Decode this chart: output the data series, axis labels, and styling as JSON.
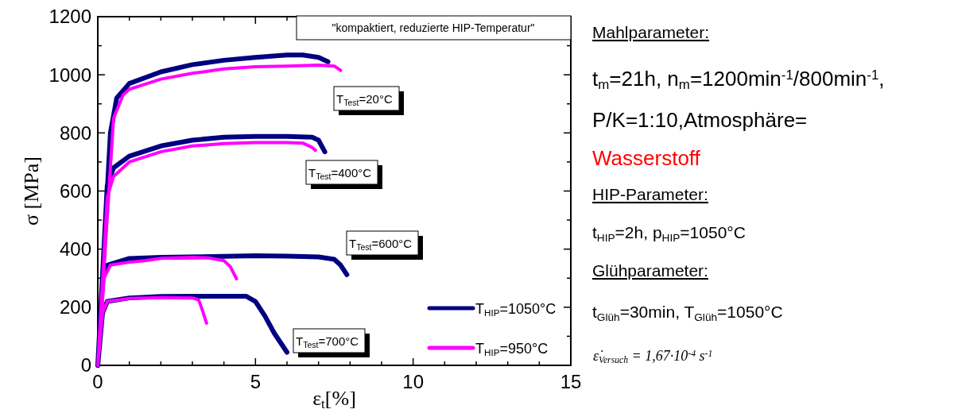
{
  "chart_data": {
    "type": "line",
    "title": "\"kompaktiert, reduzierte HIP-Temperatur\"",
    "xlabel": "ε$_{t}$[%]",
    "ylabel": "σ [MPa]",
    "xlim": [
      0,
      15
    ],
    "ylim": [
      0,
      1200
    ],
    "xticks": [
      0,
      {
        "value": 1,
        "label": null
      },
      {
        "value": 2,
        "label": null
      },
      {
        "value": 3,
        "label": null
      },
      {
        "value": 4,
        "label": null
      },
      5,
      {
        "value": 6,
        "label": null
      },
      {
        "value": 7,
        "label": null
      },
      {
        "value": 8,
        "label": null
      },
      {
        "value": 9,
        "label": null
      },
      10,
      {
        "value": 11,
        "label": null
      },
      {
        "value": 12,
        "label": null
      },
      {
        "value": 13,
        "label": null
      },
      {
        "value": 14,
        "label": null
      },
      15
    ],
    "yticks": [
      0,
      {
        "value": 100,
        "label": null
      },
      200,
      {
        "value": 300,
        "label": null
      },
      400,
      {
        "value": 500,
        "label": null
      },
      600,
      {
        "value": 700,
        "label": null
      },
      800,
      {
        "value": 900,
        "label": null
      },
      1000,
      {
        "value": 1100,
        "label": null
      },
      1200
    ],
    "grid": false,
    "legend": "bottom right",
    "marker": "none",
    "line_style": "solid",
    "series": [
      {
        "name": "T$_{HIP}$=1050°C",
        "color": "#000080",
        "x": [
          0,
          0.4,
          0.6,
          1,
          2,
          3,
          4,
          5,
          6,
          6.5,
          7,
          7.3,
          null,
          0,
          0.3,
          0.5,
          1,
          2,
          3,
          4,
          5,
          6,
          6.8,
          7,
          7.2,
          null,
          0,
          0.15,
          0.3,
          1,
          2,
          4,
          5,
          6,
          7,
          7.5,
          7.7,
          7.9,
          null,
          0,
          0.15,
          0.3,
          1,
          2,
          3,
          4,
          4.7,
          5,
          5.3,
          5.6,
          6
        ],
        "values": [
          0,
          800,
          920,
          970,
          1010,
          1035,
          1050,
          1060,
          1068,
          1068,
          1060,
          1045,
          null,
          0,
          620,
          680,
          720,
          755,
          775,
          785,
          788,
          788,
          785,
          775,
          735,
          null,
          0,
          300,
          345,
          368,
          372,
          375,
          377,
          376,
          373,
          365,
          345,
          312,
          null,
          0,
          180,
          220,
          232,
          237,
          238,
          238,
          238,
          220,
          170,
          110,
          45
        ]
      },
      {
        "name": "T$_{HIP}$=950°C",
        "color": "#ff00ff",
        "x": [
          0,
          0.5,
          0.8,
          1,
          2,
          3,
          4,
          5,
          6,
          7,
          7.5,
          7.7,
          null,
          0,
          0.3,
          0.5,
          1,
          2,
          3,
          4,
          5,
          6,
          6.5,
          6.8,
          6.9,
          null,
          0,
          0.2,
          0.4,
          1,
          1.5,
          2,
          3,
          3.5,
          4,
          4.2,
          4.4,
          null,
          0,
          0.15,
          0.3,
          1,
          2,
          3,
          3.2,
          3.3,
          3.45
        ],
        "values": [
          0,
          850,
          930,
          950,
          985,
          1005,
          1020,
          1028,
          1030,
          1033,
          1030,
          1015,
          null,
          0,
          580,
          650,
          700,
          735,
          755,
          763,
          767,
          767,
          765,
          750,
          740,
          null,
          0,
          300,
          345,
          355,
          360,
          368,
          372,
          370,
          360,
          340,
          298,
          null,
          0,
          180,
          220,
          230,
          233,
          232,
          225,
          195,
          145
        ]
      }
    ],
    "annotations": [
      "T$_{Test}$=20°C",
      "T$_{Test}$=400°C",
      "T$_{Test}$=600°C",
      "T$_{Test}$=700°C",
      "Mahlparameter:",
      "t$_{m}$=21h, n$_{m}$=1200min$^{-1}$/800min$^{-1}$,",
      "P/K=1:10,Atmosphäre=",
      "Wasserstoff",
      "HIP-Parameter:",
      "t$_{HIP}$=2h, p$_{HIP}$=1050°C",
      "Glühparameter:",
      "t$_{Glüh}$=30min, T$_{Glüh}$=1050°C",
      "ε̇$_{Versuch}$ = 1,67·10$^{-4}$ s$^{-1}$"
    ]
  }
}
